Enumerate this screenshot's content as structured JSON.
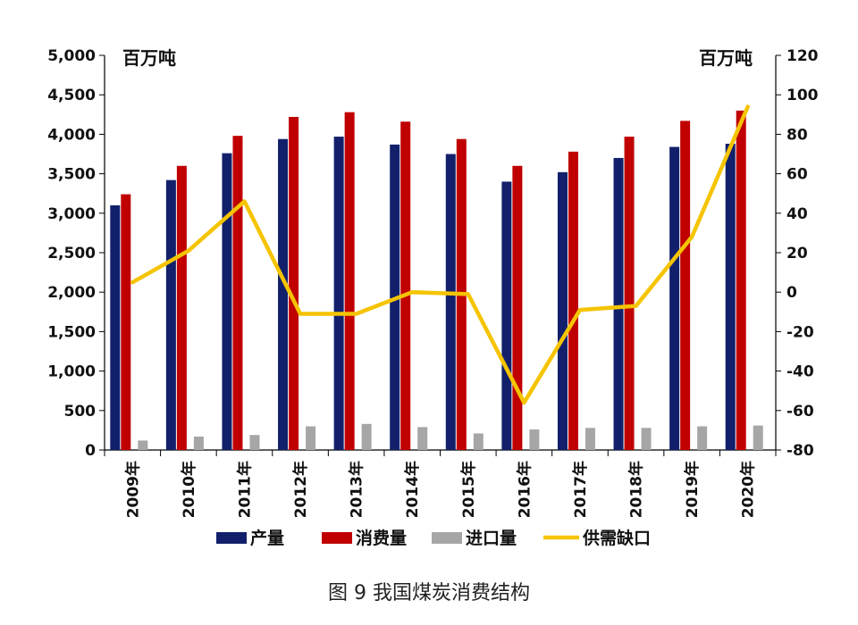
{
  "caption": "图 9  我国煤炭消费结构",
  "chart_data": {
    "type": "bar",
    "categories": [
      "2009年",
      "2010年",
      "2011年",
      "2012年",
      "2013年",
      "2014年",
      "2015年",
      "2016年",
      "2017年",
      "2018年",
      "2019年",
      "2020年"
    ],
    "series": [
      {
        "name": "产量",
        "kind": "bar",
        "axis": "left",
        "color": "#12206b",
        "values": [
          3100,
          3420,
          3760,
          3940,
          3970,
          3870,
          3750,
          3400,
          3520,
          3700,
          3840,
          3880
        ]
      },
      {
        "name": "消费量",
        "kind": "bar",
        "axis": "left",
        "color": "#c00000",
        "values": [
          3240,
          3600,
          3980,
          4220,
          4280,
          4160,
          3940,
          3600,
          3780,
          3970,
          4170,
          4300
        ]
      },
      {
        "name": "进口量",
        "kind": "bar",
        "axis": "left",
        "color": "#a6a6a6",
        "values": [
          120,
          170,
          190,
          300,
          330,
          290,
          210,
          260,
          280,
          280,
          300,
          310
        ]
      },
      {
        "name": "供需缺口",
        "kind": "line",
        "axis": "right",
        "color": "#f5c400",
        "values": [
          5,
          21,
          46,
          -11,
          -11,
          0,
          -1,
          -56,
          -9,
          -7,
          28,
          94
        ]
      }
    ],
    "left_axis": {
      "unit": "百万吨",
      "min": 0,
      "max": 5000,
      "ticks": [
        "0",
        "500",
        "1,000",
        "1,500",
        "2,000",
        "2,500",
        "3,000",
        "3,500",
        "4,000",
        "4,500",
        "5,000"
      ]
    },
    "right_axis": {
      "unit": "百万吨",
      "min": -80,
      "max": 120,
      "ticks": [
        "-80",
        "-60",
        "-40",
        "-20",
        "0",
        "20",
        "40",
        "60",
        "80",
        "100",
        "120"
      ]
    },
    "grid": false,
    "legend_position": "bottom"
  }
}
